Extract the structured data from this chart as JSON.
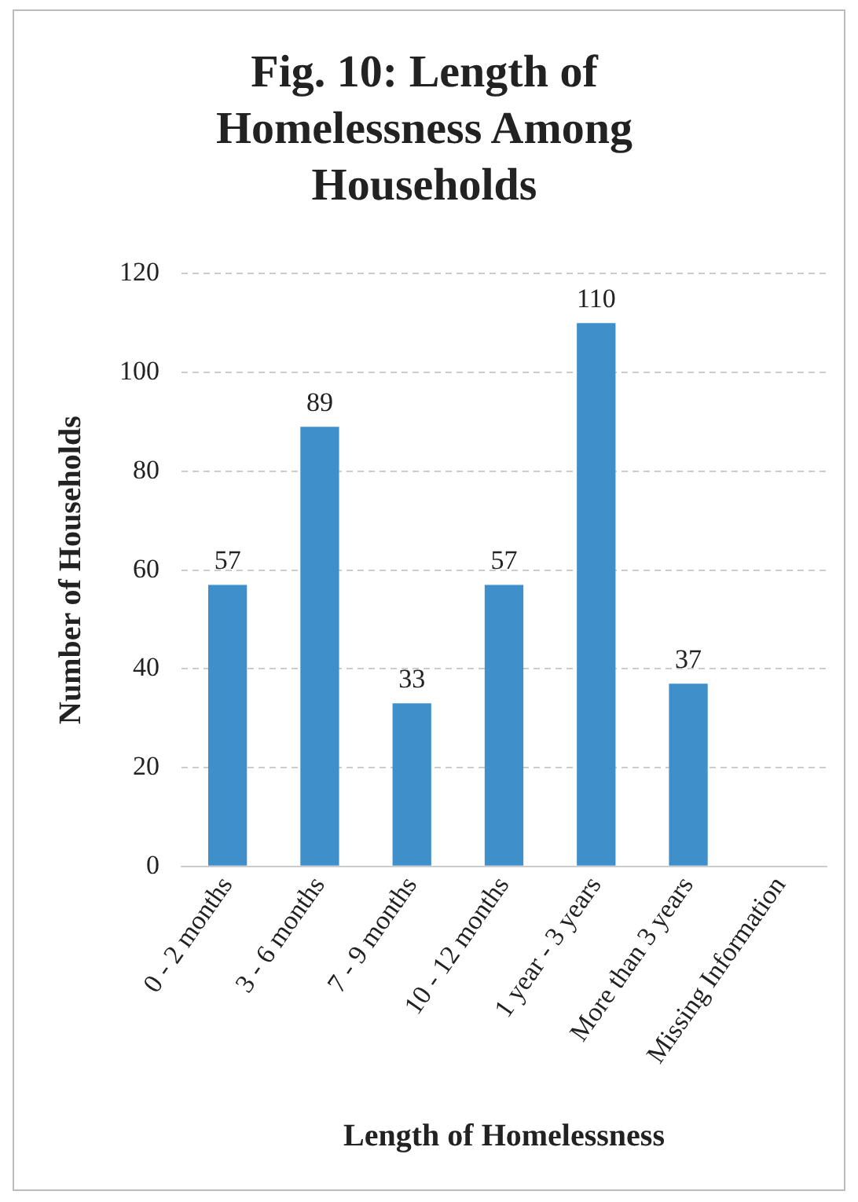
{
  "chart_data": {
    "type": "bar",
    "title": "Fig. 10: Length of Homelessness Among Households",
    "xlabel": "Length of Homelessness",
    "ylabel": "Number of Households",
    "categories": [
      "0 - 2 months",
      "3 - 6 months",
      "7 - 9 months",
      "10 - 12 months",
      "1 year - 3 years",
      "More than 3 years",
      "Missing Information"
    ],
    "values": [
      57,
      89,
      33,
      57,
      110,
      37,
      null
    ],
    "color": "#3f8fcb",
    "ylim": [
      0,
      120
    ],
    "yticks": [
      0,
      20,
      40,
      60,
      80,
      100,
      120
    ],
    "grid": "y",
    "data_labels": true,
    "legend": false
  }
}
